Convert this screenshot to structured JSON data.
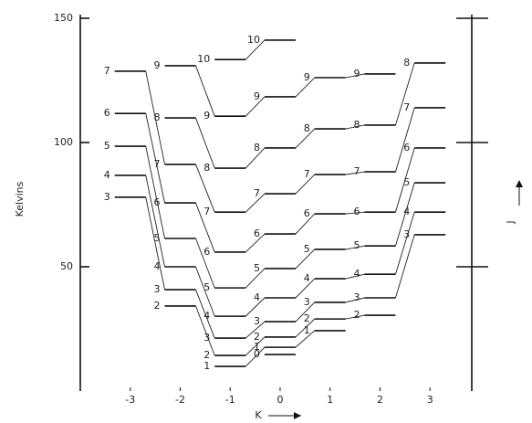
{
  "chart_data": {
    "type": "levels",
    "ylabel": "Kelvins",
    "xlabel": "K",
    "y2label": "J",
    "xlim": [
      -4,
      3.8
    ],
    "xticks": [
      -3,
      -2,
      -1,
      0,
      1,
      2,
      3
    ],
    "ylim": [
      0,
      150
    ],
    "yticks": [
      50,
      100,
      150
    ],
    "color": "#111111",
    "series": [
      {
        "x": -3,
        "labels": [
          3,
          4,
          5,
          6,
          7
        ],
        "values": [
          78,
          86.8,
          98.5,
          111.7,
          128.7
        ]
      },
      {
        "x": -2,
        "labels": [
          2,
          3,
          4,
          5,
          6,
          7,
          8,
          9
        ],
        "values": [
          34.2,
          40.8,
          50,
          61.4,
          75.7,
          91.2,
          109.9,
          130.9
        ]
      },
      {
        "x": -1,
        "labels": [
          1,
          2,
          3,
          4,
          5,
          6,
          7,
          8,
          9,
          10
        ],
        "values": [
          9.9,
          14.3,
          21.3,
          30.1,
          41.5,
          55.9,
          72,
          89.7,
          110.6,
          133.4
        ]
      },
      {
        "x": 0,
        "labels": [
          0,
          1,
          2,
          3,
          4,
          5,
          6,
          7,
          8,
          9,
          10
        ],
        "values": [
          14.7,
          17.6,
          21.7,
          27.9,
          37.5,
          49.3,
          63.2,
          79.4,
          97.8,
          118.4,
          141.2
        ]
      },
      {
        "x": 1,
        "labels": [
          1,
          2,
          3,
          4,
          5,
          6,
          7,
          8,
          9
        ],
        "values": [
          24.3,
          29,
          35.7,
          45.2,
          57,
          71.3,
          87.1,
          105.5,
          126.1
        ]
      },
      {
        "x": 2,
        "labels": [
          2,
          3,
          4,
          5,
          6,
          7,
          8,
          9
        ],
        "values": [
          30.5,
          37.5,
          47,
          58.4,
          72,
          88.2,
          107,
          127.6
        ]
      },
      {
        "x": 3,
        "labels": [
          3,
          4,
          5,
          6,
          7,
          8
        ],
        "values": [
          62.9,
          72,
          83.8,
          97.8,
          114,
          132
        ]
      }
    ]
  }
}
